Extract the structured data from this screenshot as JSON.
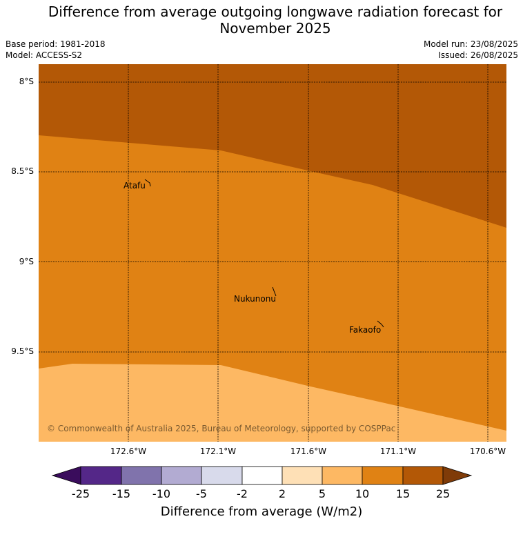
{
  "title_line1": "Difference from average outgoing longwave radiation forecast for",
  "title_line2": "November 2025",
  "base_period": "Base period: 1981-2018",
  "model": "Model: ACCESS-S2",
  "model_run": "Model run: 23/08/2025",
  "issued": "Issued: 26/08/2025",
  "lat_labels": [
    "8°S",
    "8.5°S",
    "9°S",
    "9.5°S"
  ],
  "lon_labels": [
    "172.6°W",
    "172.1°W",
    "171.6°W",
    "171.1°W",
    "170.6°W"
  ],
  "places": [
    "Atafu",
    "Nukunonu",
    "Fakaofo"
  ],
  "copyright": "© Commonwealth of Australia 2025, Bureau of Meteorology, supported by COSPPac",
  "colorbar": {
    "ticks": [
      "-25",
      "-15",
      "-10",
      "-5",
      "-2",
      "2",
      "5",
      "10",
      "15",
      "25"
    ],
    "label": "Difference from average (W/m2)",
    "colors": [
      "#3a0c5c",
      "#542788",
      "#8073ac",
      "#b2abd2",
      "#d8daeb",
      "#ffffff",
      "#fee0b6",
      "#fdb863",
      "#e08214",
      "#b35806",
      "#7f3b08"
    ]
  },
  "map_colors": {
    "band_15_25": "#b35806",
    "band_10_15": "#e08214",
    "band_5_10": "#fdb863"
  }
}
